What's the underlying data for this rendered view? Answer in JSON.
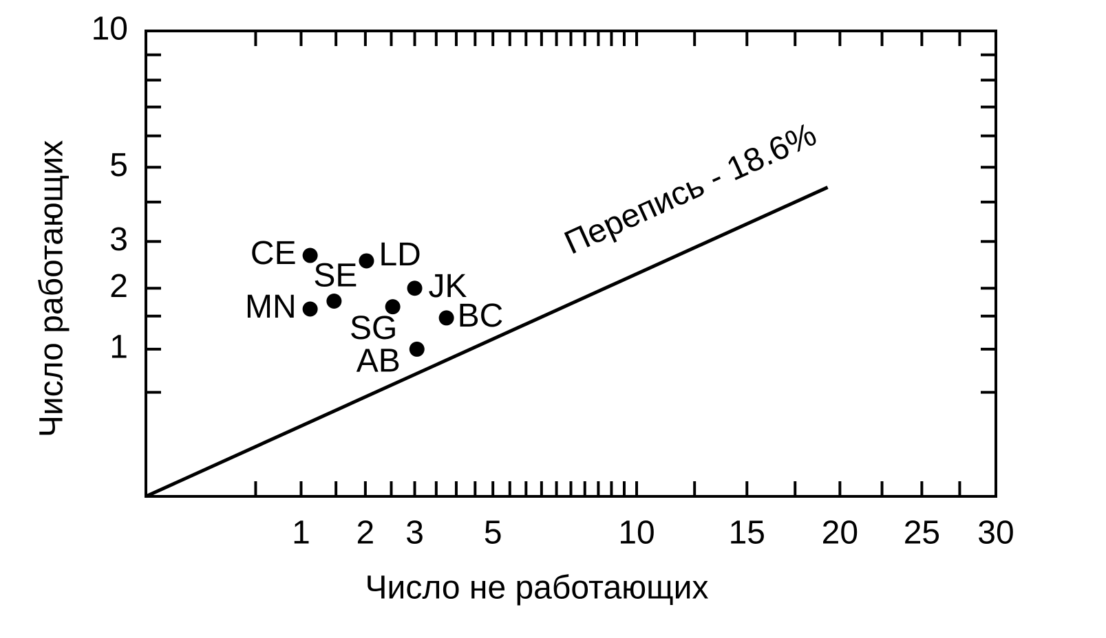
{
  "chart_data": {
    "type": "scatter",
    "x_label": "Число не работающих",
    "y_label": "Число работающих",
    "xscale": "sqrt",
    "yscale": "sqrt",
    "xlim": [
      0,
      30
    ],
    "ylim": [
      0,
      10
    ],
    "xticks": [
      1,
      2,
      3,
      5,
      10,
      15,
      20,
      25,
      30
    ],
    "yticks": [
      1,
      2,
      3,
      5,
      10
    ],
    "xminorticks": [
      0.5,
      1.5,
      2.5,
      3.5,
      4,
      4.5,
      5.5,
      6,
      6.5,
      7,
      7.5,
      8,
      8.5,
      9,
      9.5,
      12.5,
      17.5,
      22.5,
      27.5
    ],
    "yminorticks": [
      0.5,
      1.5,
      4,
      6,
      7,
      8,
      9
    ],
    "color": "#000000",
    "point_labels": [
      "CE",
      "SE",
      "MN",
      "LD",
      "SG",
      "JK",
      "BC",
      "AB"
    ],
    "x": [
      1.12,
      1.47,
      1.12,
      2.02,
      2.53,
      3.0,
      3.75,
      3.05
    ],
    "values": [
      2.68,
      1.76,
      1.62,
      2.56,
      1.66,
      2.0,
      1.47,
      1.0
    ],
    "line": {
      "label": "Перепись - 18.6%",
      "x": [
        0,
        19.3
      ],
      "y": [
        0,
        4.41
      ]
    }
  }
}
